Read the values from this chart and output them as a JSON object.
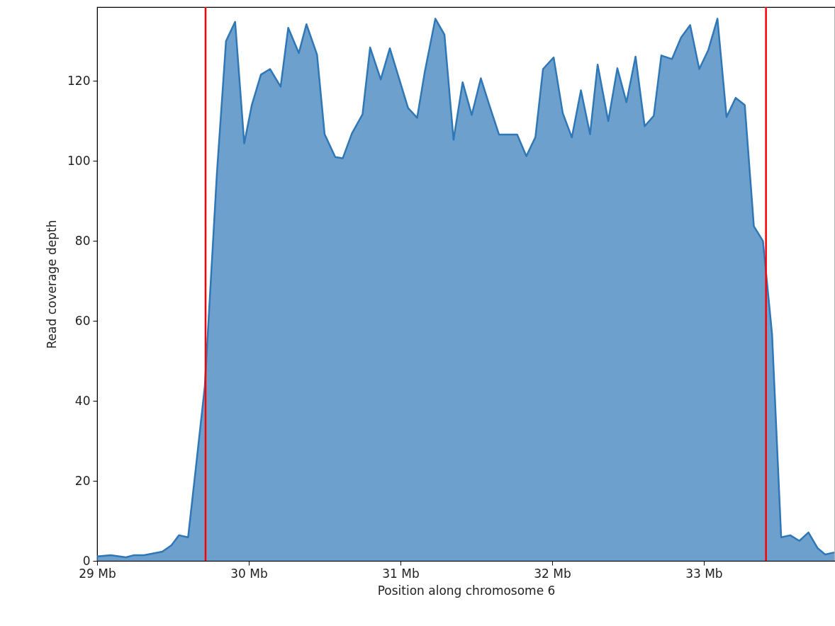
{
  "chart_data": {
    "type": "area",
    "xlabel": "Position along chromosome 6",
    "ylabel": "Read coverage depth",
    "x": [
      29.0,
      29.09,
      29.19,
      29.24,
      29.31,
      29.43,
      29.49,
      29.54,
      29.6,
      29.65,
      29.71,
      29.79,
      29.85,
      29.91,
      29.97,
      30.02,
      30.08,
      30.14,
      30.21,
      30.26,
      30.33,
      30.38,
      30.45,
      30.5,
      30.57,
      30.62,
      30.68,
      30.75,
      30.8,
      30.87,
      30.93,
      31.05,
      31.11,
      31.16,
      31.23,
      31.29,
      31.35,
      31.41,
      31.47,
      31.53,
      31.59,
      31.65,
      31.77,
      31.83,
      31.89,
      31.94,
      32.01,
      32.07,
      32.13,
      32.19,
      32.25,
      32.3,
      32.37,
      32.43,
      32.49,
      32.55,
      32.61,
      32.67,
      32.72,
      32.79,
      32.85,
      32.91,
      32.97,
      33.03,
      33.09,
      33.15,
      33.21,
      33.27,
      33.33,
      33.39,
      33.45,
      33.51,
      33.57,
      33.63,
      33.69,
      33.75,
      33.8,
      33.86
    ],
    "series": [
      {
        "color": "#2f77b7",
        "values": [
          1.1,
          1.4,
          0.9,
          1.4,
          1.4,
          2.3,
          3.9,
          6.4,
          5.9,
          22.9,
          43.6,
          97,
          130,
          134.8,
          104.4,
          114,
          121.6,
          123,
          118.6,
          133.3,
          127,
          134.2,
          126.6,
          106.7,
          101,
          100.7,
          106.9,
          111.7,
          128.4,
          120.4,
          128.2,
          113.3,
          110.8,
          122.2,
          135.6,
          131.6,
          105.3,
          119.7,
          111.5,
          120.7,
          113.5,
          106.6,
          106.6,
          101.2,
          106,
          123,
          125.9,
          112,
          105.9,
          117.7,
          106.7,
          124.1,
          110,
          123.2,
          114.7,
          126.1,
          108.7,
          111.3,
          126.4,
          125.5,
          130.9,
          134,
          123,
          127.8,
          135.6,
          111,
          115.8,
          114,
          83.7,
          80,
          56.7,
          5.9,
          6.4,
          5,
          7.1,
          3.2,
          1.6,
          2.1
        ]
      }
    ],
    "xlim": [
      29,
      33.865
    ],
    "ylim": [
      0,
      138.5
    ],
    "xticks": [
      {
        "value": 29,
        "label": "29 Mb"
      },
      {
        "value": 30,
        "label": "30 Mb"
      },
      {
        "value": 31,
        "label": "31 Mb"
      },
      {
        "value": 32,
        "label": "32 Mb"
      },
      {
        "value": 33,
        "label": "33 Mb"
      }
    ],
    "yticks": [
      0,
      20,
      40,
      60,
      80,
      100,
      120
    ],
    "ref_lines": [
      {
        "axis": "x",
        "value": 29.715,
        "color": "#ff0000"
      },
      {
        "axis": "x",
        "value": 33.41,
        "color": "#ff0000"
      }
    ],
    "grid": false
  }
}
